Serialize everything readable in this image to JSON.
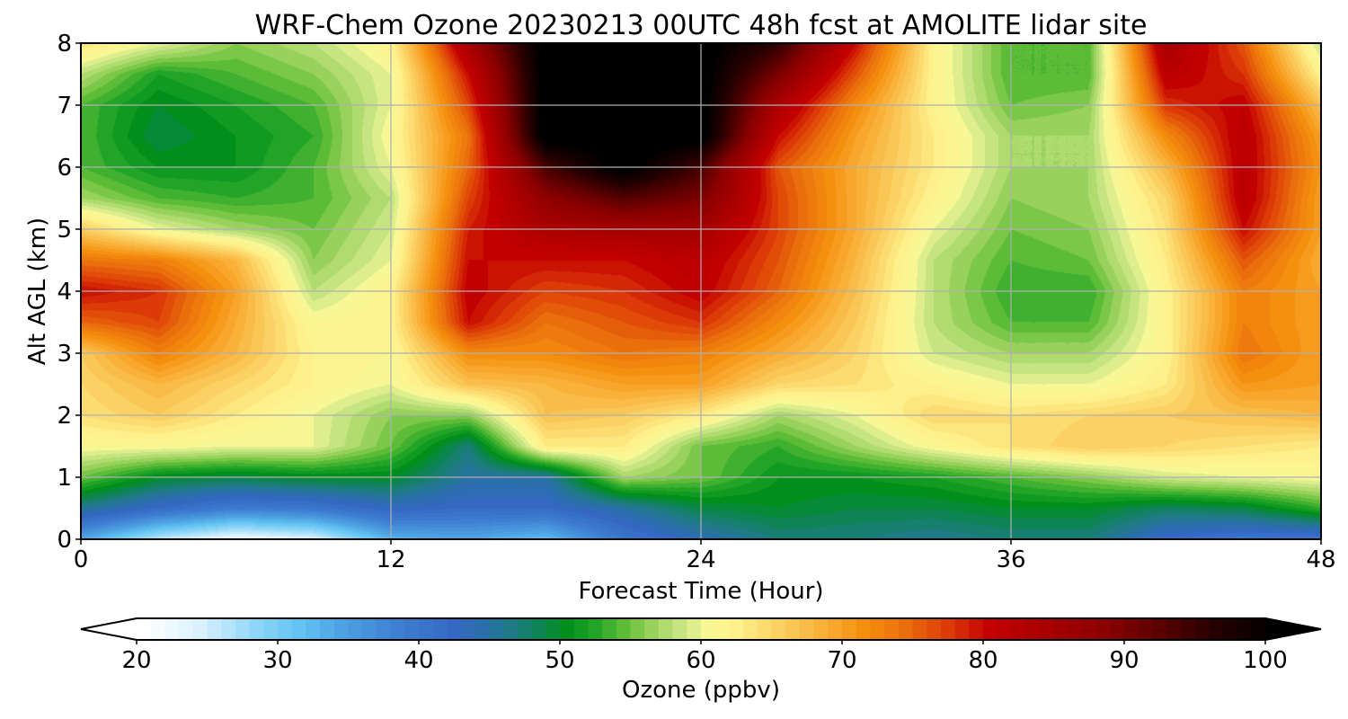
{
  "chart_data": {
    "type": "heatmap",
    "title": "WRF-Chem Ozone  20230213 00UTC 48h fcst at AMOLITE lidar site",
    "xlabel": "Forecast Time (Hour)",
    "ylabel": "Alt AGL (km)",
    "xlim": [
      0,
      48
    ],
    "ylim": [
      0,
      8
    ],
    "x_ticks": [
      0,
      12,
      24,
      36,
      48
    ],
    "y_ticks": [
      0,
      1,
      2,
      3,
      4,
      5,
      6,
      7,
      8
    ],
    "grid": true,
    "x": [
      0,
      3,
      6,
      9,
      12,
      15,
      18,
      21,
      24,
      27,
      30,
      33,
      36,
      39,
      42,
      45,
      48
    ],
    "y": [
      0,
      0.5,
      1,
      1.5,
      2,
      2.5,
      3,
      3.5,
      4,
      4.5,
      5,
      5.5,
      6,
      6.5,
      7,
      7.5,
      8
    ],
    "z": [
      [
        34,
        26,
        22,
        24,
        33,
        34,
        32,
        40,
        44,
        47,
        47,
        46,
        47,
        47,
        42,
        40,
        40
      ],
      [
        46,
        42,
        39,
        40,
        43,
        42,
        42,
        45,
        49,
        50,
        49,
        49,
        50,
        50,
        48,
        49,
        53
      ],
      [
        55,
        50,
        49,
        50,
        50,
        45,
        45,
        57,
        55,
        51,
        51,
        52,
        54,
        56,
        59,
        60,
        61
      ],
      [
        61,
        61,
        60,
        60,
        55,
        47,
        63,
        63,
        55,
        53,
        57,
        61,
        64,
        66,
        65,
        64,
        63
      ],
      [
        64,
        66,
        63,
        60,
        56,
        56,
        67,
        66,
        63,
        57,
        60,
        65,
        64,
        65,
        66,
        67,
        68
      ],
      [
        65,
        68,
        65,
        62,
        60,
        67,
        68,
        70,
        70,
        65,
        64,
        62,
        60,
        60,
        63,
        71,
        70
      ],
      [
        66,
        73,
        68,
        62,
        61,
        72,
        72,
        74,
        73,
        69,
        65,
        59,
        57,
        57,
        62,
        74,
        70
      ],
      [
        75,
        77,
        69,
        61,
        62,
        80,
        74,
        76,
        78,
        72,
        66,
        58,
        54,
        54,
        62,
        73,
        70
      ],
      [
        80,
        78,
        70,
        58,
        62,
        81,
        77,
        78,
        81,
        75,
        67,
        58,
        53,
        53,
        62,
        73,
        70
      ],
      [
        74,
        73,
        68,
        56,
        60,
        80,
        80,
        80,
        82,
        76,
        68,
        58,
        54,
        55,
        63,
        76,
        69
      ],
      [
        66,
        60,
        57,
        55,
        59,
        79,
        84,
        85,
        85,
        77,
        69,
        60,
        55,
        56,
        64,
        80,
        70
      ],
      [
        57,
        54,
        53,
        54,
        58,
        77,
        88,
        93,
        90,
        77,
        69,
        62,
        56,
        57,
        65,
        82,
        70
      ],
      [
        54,
        51,
        51,
        54,
        60,
        75,
        94,
        102,
        94,
        76,
        69,
        63,
        57,
        57,
        68,
        82,
        71
      ],
      [
        54,
        49,
        51,
        53,
        61,
        74,
        102,
        102,
        102,
        80,
        70,
        63,
        57,
        57,
        72,
        82,
        70
      ],
      [
        54,
        50,
        52,
        54,
        60,
        77,
        102,
        102,
        102,
        84,
        72,
        62,
        55,
        56,
        78,
        81,
        67
      ],
      [
        58,
        52,
        54,
        56,
        60,
        80,
        102,
        102,
        102,
        90,
        76,
        62,
        54,
        54,
        82,
        78,
        62
      ],
      [
        64,
        60,
        56,
        58,
        62,
        85,
        102,
        102,
        102,
        96,
        80,
        62,
        54,
        54,
        85,
        76,
        58
      ]
    ],
    "colorbar": {
      "label": "Ozone  (ppbv)",
      "min": 20,
      "max": 100,
      "ticks": [
        20,
        30,
        40,
        50,
        60,
        70,
        80,
        90,
        100
      ],
      "extend": "both",
      "position": "bottom",
      "colormap": [
        {
          "v": 20,
          "c": "#ffffff"
        },
        {
          "v": 24,
          "c": "#d9f1fc"
        },
        {
          "v": 28,
          "c": "#8ed6f7"
        },
        {
          "v": 31,
          "c": "#63c3f2"
        },
        {
          "v": 34,
          "c": "#4ea2e3"
        },
        {
          "v": 38,
          "c": "#3e7fd1"
        },
        {
          "v": 42,
          "c": "#3568c2"
        },
        {
          "v": 44,
          "c": "#2a6eab"
        },
        {
          "v": 46,
          "c": "#1f7a86"
        },
        {
          "v": 48,
          "c": "#0e8454"
        },
        {
          "v": 50,
          "c": "#008f1a"
        },
        {
          "v": 52,
          "c": "#22a427"
        },
        {
          "v": 54,
          "c": "#5cbb37"
        },
        {
          "v": 56,
          "c": "#98d25c"
        },
        {
          "v": 58,
          "c": "#c6e482"
        },
        {
          "v": 60,
          "c": "#f7f796"
        },
        {
          "v": 62,
          "c": "#fef08a"
        },
        {
          "v": 65,
          "c": "#fbd164"
        },
        {
          "v": 68,
          "c": "#f9b13a"
        },
        {
          "v": 71,
          "c": "#f5900f"
        },
        {
          "v": 74,
          "c": "#ea6f0c"
        },
        {
          "v": 77,
          "c": "#dc3a07"
        },
        {
          "v": 80,
          "c": "#c30000"
        },
        {
          "v": 84,
          "c": "#a80000"
        },
        {
          "v": 88,
          "c": "#8c0000"
        },
        {
          "v": 92,
          "c": "#5a0000"
        },
        {
          "v": 96,
          "c": "#260000"
        },
        {
          "v": 100,
          "c": "#000000"
        }
      ]
    }
  }
}
